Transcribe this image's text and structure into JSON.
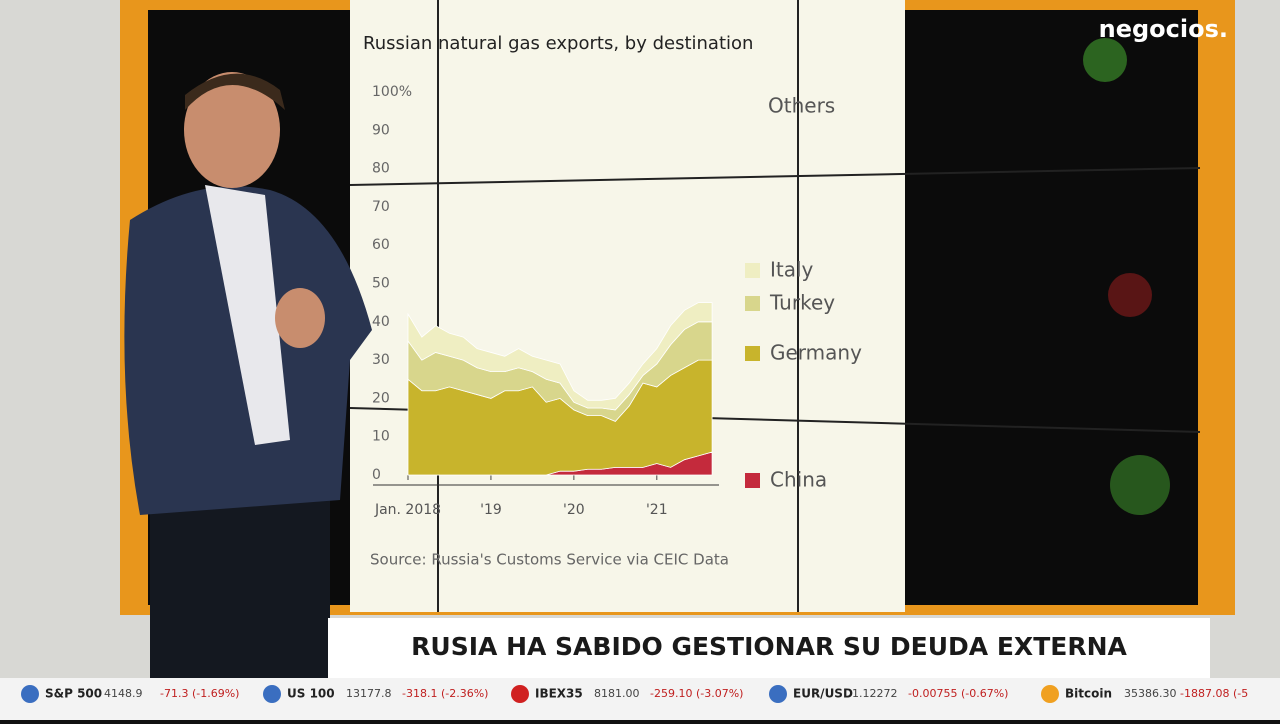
{
  "chart_data": {
    "type": "stacked-area",
    "title": "Russian natural gas exports, by destination",
    "source": "Source: Russia's Customs Service via CEIC Data",
    "others_label": "Others",
    "x": [
      2018,
      2018.1667,
      2018.3333,
      2018.5,
      2018.6667,
      2018.8333,
      2019,
      2019.1667,
      2019.3333,
      2019.5,
      2019.6667,
      2019.8333,
      2020,
      2020.1667,
      2020.3333,
      2020.5,
      2020.6667,
      2020.8333,
      2021,
      2021.1667,
      2021.3333,
      2021.5,
      2021.6667
    ],
    "xlim": [
      2018,
      2021.75
    ],
    "xticks": [
      {
        "value": 2018,
        "label": "Jan. 2018"
      },
      {
        "value": 2019,
        "label": "'19"
      },
      {
        "value": 2020,
        "label": "'20"
      },
      {
        "value": 2021,
        "label": "'21"
      }
    ],
    "ylim": [
      0,
      100
    ],
    "yticks": [
      0,
      10,
      20,
      30,
      40,
      50,
      60,
      70,
      80,
      90,
      {
        "value": 100,
        "label": "100%"
      }
    ],
    "grid": false,
    "series": [
      {
        "name": "China",
        "color": "#c42a3c",
        "values": [
          0,
          0,
          0,
          0,
          0,
          0,
          0,
          0,
          0,
          0,
          0,
          1,
          1,
          1.5,
          1.5,
          2,
          2,
          2,
          3,
          2,
          4,
          5,
          6
        ]
      },
      {
        "name": "Germany",
        "color": "#c8b42c",
        "values": [
          25,
          22,
          22,
          23,
          22,
          21,
          20,
          22,
          22,
          23,
          19,
          19,
          16,
          14,
          14,
          12,
          16,
          22,
          20,
          24,
          24,
          25,
          24
        ]
      },
      {
        "name": "Turkey",
        "color": "#d8d68c",
        "values": [
          10,
          8,
          10,
          8,
          8,
          7,
          7,
          5,
          6,
          4,
          6,
          4,
          2,
          2,
          2,
          3,
          3,
          2,
          6,
          8,
          10,
          10,
          10
        ]
      },
      {
        "name": "Italy",
        "color": "#efeec2",
        "values": [
          7,
          6,
          7,
          6,
          6,
          5,
          5,
          4,
          5,
          4,
          5,
          5,
          3,
          2,
          2,
          3,
          3,
          3,
          4,
          5,
          5,
          5,
          5
        ]
      }
    ]
  },
  "broadcast": {
    "logo": "negocios.",
    "headline": "RUSIA HA SABIDO GESTIONAR SU DEUDA EXTERNA"
  },
  "ticker": {
    "items": [
      {
        "name": "S&P 500",
        "value": "4148.9",
        "change": "-71.3 (-1.69%)"
      },
      {
        "name": "US 100",
        "value": "13177.8",
        "change": "-318.1 (-2.36%)"
      },
      {
        "name": "IBEX35",
        "value": "8181.00",
        "change": "-259.10 (-3.07%)"
      },
      {
        "name": "EUR/USD",
        "value": "1.12272",
        "change": "-0.00755 (-0.67%)"
      },
      {
        "name": "Bitcoin",
        "value": "35386.30",
        "change": "-1887.08 (-5"
      }
    ]
  }
}
